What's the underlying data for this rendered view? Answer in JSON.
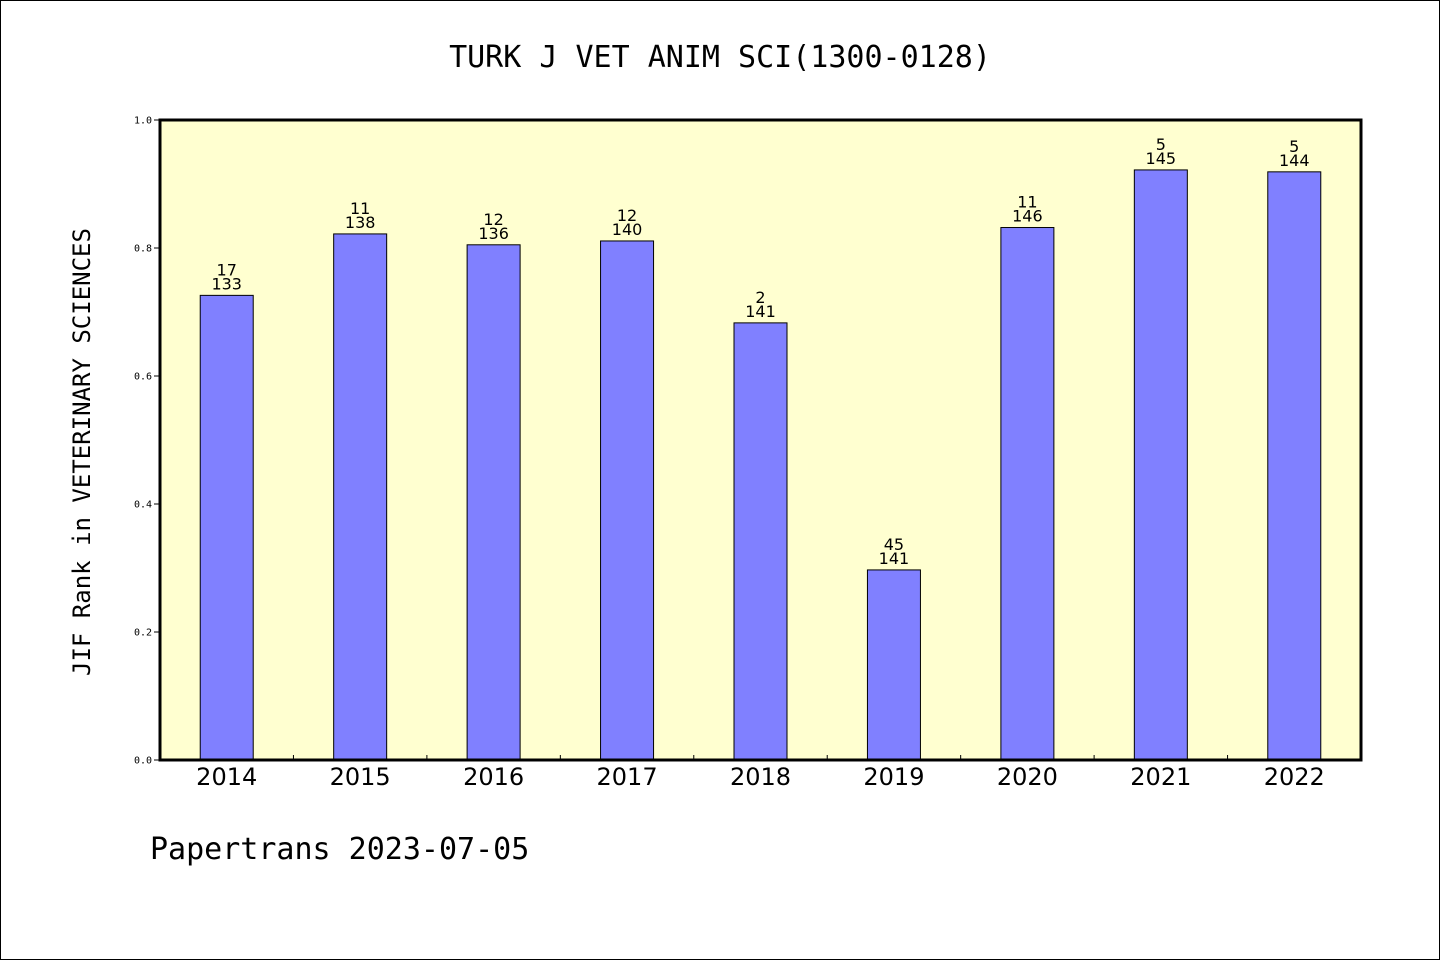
{
  "chart_data": {
    "type": "bar",
    "title": "TURK J VET ANIM SCI(1300-0128)",
    "xlabel": "",
    "ylabel": "JIF Rank in VETERINARY SCIENCES",
    "ylim": [
      0,
      1.0
    ],
    "yticks": [
      "0.0",
      "0.2",
      "0.4",
      "0.6",
      "0.8",
      "1.0"
    ],
    "categories": [
      "2014",
      "2015",
      "2016",
      "2017",
      "2018",
      "2019",
      "2020",
      "2021",
      "2022"
    ],
    "values": [
      0.726,
      0.822,
      0.805,
      0.811,
      0.683,
      0.297,
      0.832,
      0.922,
      0.919
    ],
    "rank": [
      "17",
      "11",
      "12",
      "12",
      "2",
      "45",
      "11",
      "5",
      "5"
    ],
    "total": [
      "133",
      "138",
      "136",
      "140",
      "141",
      "141",
      "146",
      "145",
      "144"
    ],
    "grid": false,
    "colors": {
      "bar": "#8080ff",
      "plot_background": "#ffffd0"
    }
  },
  "footer": {
    "text": "Papertrans 2023-07-05"
  }
}
